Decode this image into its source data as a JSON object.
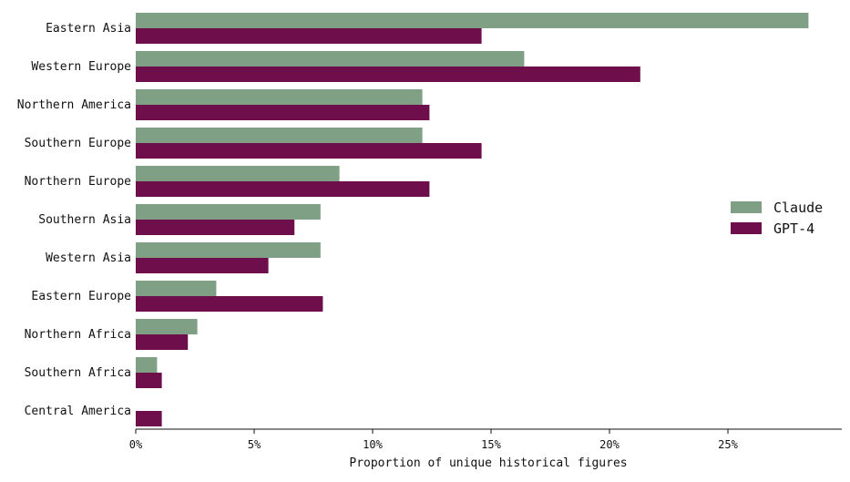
{
  "chart_data": {
    "type": "bar",
    "orientation": "horizontal",
    "categories": [
      "Eastern Asia",
      "Western Europe",
      "Northern America",
      "Southern Europe",
      "Northern Europe",
      "Southern Asia",
      "Western Asia",
      "Eastern Europe",
      "Northern Africa",
      "Southern Africa",
      "Central America"
    ],
    "series": [
      {
        "name": "Claude",
        "color": "#7fa084",
        "values": [
          28.4,
          16.4,
          12.1,
          12.1,
          8.6,
          7.8,
          7.8,
          3.4,
          2.6,
          0.9,
          0.0
        ]
      },
      {
        "name": "GPT-4",
        "color": "#6e0f4c",
        "values": [
          14.6,
          21.3,
          12.4,
          14.6,
          12.4,
          6.7,
          5.6,
          7.9,
          2.2,
          1.1,
          1.1
        ]
      }
    ],
    "xlabel": "Proportion of unique historical figures",
    "ylabel": "",
    "xlim": [
      0,
      29.8
    ],
    "xticks": [
      0,
      5,
      10,
      15,
      20,
      25
    ],
    "xtick_labels": [
      "0%",
      "5%",
      "10%",
      "15%",
      "20%",
      "25%"
    ],
    "grid": false,
    "legend_position": "center-right"
  }
}
